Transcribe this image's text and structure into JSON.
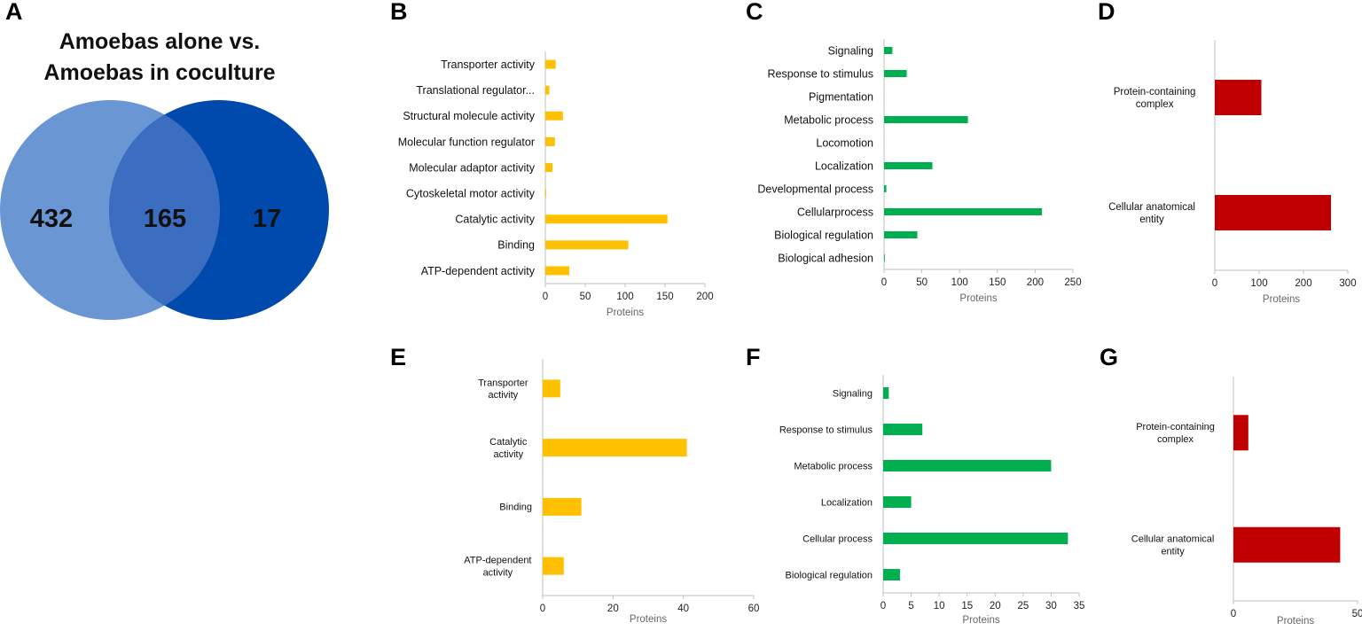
{
  "panel_letters": [
    "A",
    "B",
    "C",
    "D",
    "E",
    "F",
    "G"
  ],
  "venn": {
    "title_line1": "Amoebas alone vs.",
    "title_line2": "Amoebas in coculture",
    "left_only": "432",
    "overlap": "165",
    "right_only": "17",
    "left_color": "#6a96d4",
    "right_color": "#004aad",
    "overlap_color": "#3b6ec0"
  },
  "chart_data": [
    {
      "panel": "B",
      "type": "bar",
      "orientation": "horizontal",
      "categories": [
        "Transporter activity",
        "Translational regulator...",
        "Structural molecule activity",
        "Molecular function regulator",
        "Molecular adaptor activity",
        "Cytoskeletal motor activity",
        "Catalytic activity",
        "Binding",
        "ATP-dependent activity"
      ],
      "values": [
        13,
        5,
        22,
        12,
        9,
        1,
        153,
        104,
        30
      ],
      "xlim": [
        0,
        200
      ],
      "xticks": [
        0,
        50,
        100,
        150,
        200
      ],
      "xlabel": "Proteins",
      "color": "#ffc000"
    },
    {
      "panel": "C",
      "type": "bar",
      "orientation": "horizontal",
      "categories": [
        "Signaling",
        "Response to stimulus",
        "Pigmentation",
        "Metabolic process",
        "Locomotion",
        "Localization",
        "Developmental process",
        "Cellularprocess",
        "Biological regulation",
        "Biological adhesion"
      ],
      "values": [
        11,
        30,
        0,
        111,
        0,
        64,
        3,
        209,
        44,
        1
      ],
      "xlim": [
        0,
        250
      ],
      "xticks": [
        0,
        50,
        100,
        150,
        200,
        250
      ],
      "xlabel": "Proteins",
      "color": "#00b050"
    },
    {
      "panel": "D",
      "type": "bar",
      "orientation": "horizontal",
      "categories": [
        "Protein-containing complex",
        "Cellular anatomical entity"
      ],
      "values": [
        105,
        262
      ],
      "xlim": [
        0,
        300
      ],
      "xticks": [
        0,
        100,
        200,
        300
      ],
      "xlabel": "Proteins",
      "color": "#c00000"
    },
    {
      "panel": "E",
      "type": "bar",
      "orientation": "horizontal",
      "categories": [
        "Transporter activity",
        "Catalytic activity",
        "Binding",
        "ATP-dependent activity"
      ],
      "values": [
        5,
        41,
        11,
        6
      ],
      "xlim": [
        0,
        60
      ],
      "xticks": [
        0,
        20,
        40,
        60
      ],
      "xlabel": "Proteins",
      "color": "#ffc000"
    },
    {
      "panel": "F",
      "type": "bar",
      "orientation": "horizontal",
      "categories": [
        "Signaling",
        "Response to stimulus",
        "Metabolic process",
        "Localization",
        "Cellular process",
        "Biological regulation"
      ],
      "values": [
        1,
        7,
        30,
        5,
        33,
        3
      ],
      "xlim": [
        0,
        35
      ],
      "xticks": [
        0,
        5,
        10,
        15,
        20,
        25,
        30,
        35
      ],
      "xlabel": "Proteins",
      "color": "#00b050"
    },
    {
      "panel": "G",
      "type": "bar",
      "orientation": "horizontal",
      "categories": [
        "Protein-containing complex",
        "Cellular anatomical entity"
      ],
      "values": [
        6,
        43
      ],
      "xlim": [
        0,
        50
      ],
      "xticks": [
        0,
        50
      ],
      "xlabel": "Proteins",
      "color": "#c00000"
    }
  ]
}
